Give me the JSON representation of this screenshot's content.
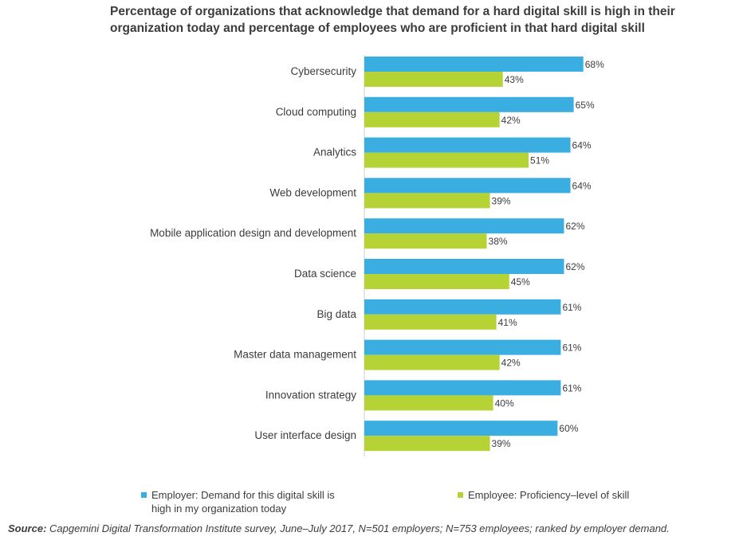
{
  "title_lines": [
    "Percentage of organizations that acknowledge that demand for a hard digital skill is high in their",
    "organization today and percentage of employees who are proficient in that hard digital skill"
  ],
  "colors": {
    "employer": "#3aaee0",
    "employee": "#b5d334",
    "axis": "#cfcfcf",
    "text": "#3c3c3c"
  },
  "legend": {
    "employer_lines": [
      "Employer: Demand for this digital skill is",
      "high in my organization today"
    ],
    "employee_lines": [
      "Employee: Proficiency–level of skill"
    ]
  },
  "source": {
    "label": "Source:",
    "text": " Capgemini Digital Transformation Institute survey, June–July 2017, N=501 employers; N=753 employees; ranked by employer demand."
  },
  "chart_data": {
    "type": "bar",
    "orientation": "horizontal",
    "categories": [
      "Cybersecurity",
      "Cloud computing",
      "Analytics",
      "Web development",
      "Mobile application design and development",
      "Data science",
      "Big data",
      "Master data management",
      "Innovation strategy",
      "User interface design"
    ],
    "series": [
      {
        "key": "employer",
        "values": [
          68,
          65,
          64,
          64,
          62,
          62,
          61,
          61,
          61,
          60
        ],
        "labels": [
          "68%",
          "65%",
          "64%",
          "64%",
          "62%",
          "62%",
          "61%",
          "61%",
          "61%",
          "60%"
        ]
      },
      {
        "key": "employee",
        "values": [
          43,
          42,
          51,
          39,
          38,
          45,
          41,
          42,
          40,
          39
        ],
        "labels": [
          "43%",
          "42%",
          "51%",
          "39%",
          "38%",
          "45%",
          "41%",
          "42%",
          "40%",
          "39%"
        ]
      }
    ],
    "xlim": [
      0,
      100
    ],
    "grid": false
  }
}
